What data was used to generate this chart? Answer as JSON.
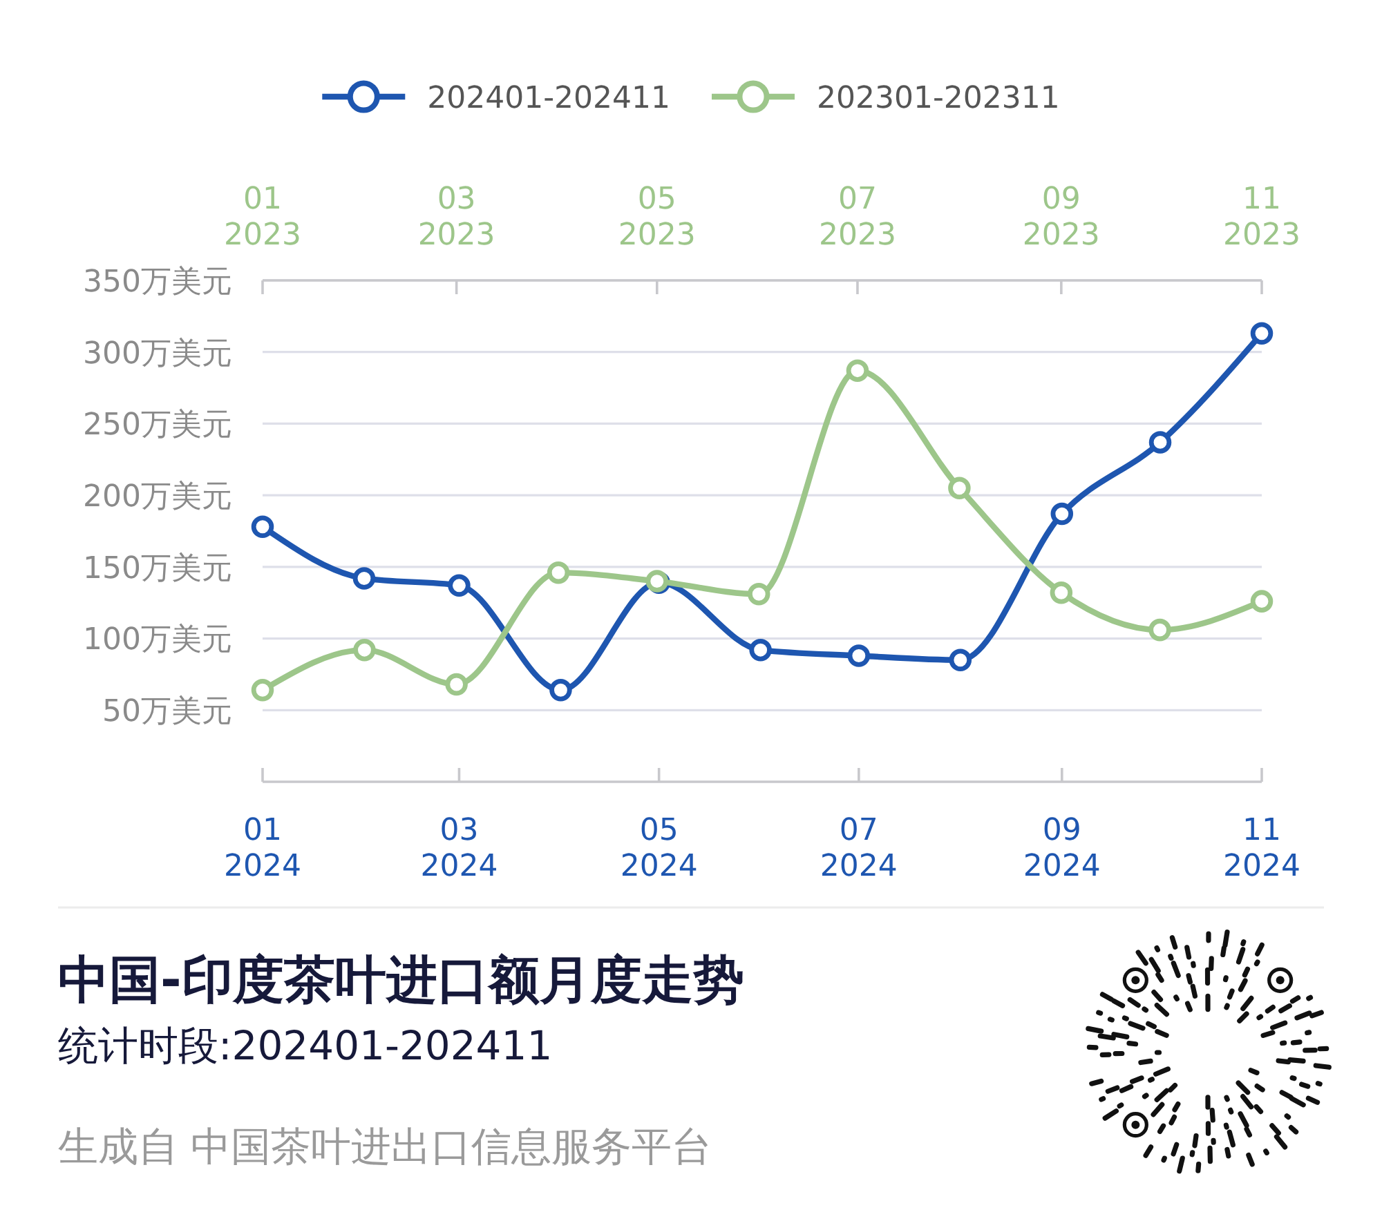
{
  "chart_data": {
    "type": "line",
    "title": "中国-印度茶叶进口额月度走势",
    "subtitle": "统计时段:202401-202411",
    "annotations": [
      "生成自 中国茶叶进出口信息服务平台"
    ],
    "x": [
      "2024-01",
      "2024-02",
      "2024-03",
      "2024-04",
      "2024-05",
      "2024-06",
      "2024-07",
      "2024-08",
      "2024-09",
      "2024-10",
      "2024-11"
    ],
    "xlim": [
      "2024-01",
      "2024-11"
    ],
    "xticks": [
      {
        "value": "2024-01",
        "label": "01\n2024"
      },
      {
        "value": "2024-03",
        "label": "03\n2024"
      },
      {
        "value": "2024-05",
        "label": "05\n2024"
      },
      {
        "value": "2024-07",
        "label": "07\n2024"
      },
      {
        "value": "2024-09",
        "label": "09\n2024"
      },
      {
        "value": "2024-11",
        "label": "11\n2024"
      }
    ],
    "x2lim": [
      "2023-01",
      "2023-11"
    ],
    "x2ticks": [
      {
        "value": "2023-01",
        "label": "01\n2023"
      },
      {
        "value": "2023-03",
        "label": "03\n2023"
      },
      {
        "value": "2023-05",
        "label": "05\n2023"
      },
      {
        "value": "2023-07",
        "label": "07\n2023"
      },
      {
        "value": "2023-09",
        "label": "09\n2023"
      },
      {
        "value": "2023-11",
        "label": "11\n2023"
      }
    ],
    "ylim": [
      0,
      350
    ],
    "yticks": [
      {
        "value": 50,
        "label": "50万美元"
      },
      {
        "value": 100,
        "label": "100万美元"
      },
      {
        "value": 150,
        "label": "150万美元"
      },
      {
        "value": 200,
        "label": "200万美元"
      },
      {
        "value": 250,
        "label": "250万美元"
      },
      {
        "value": 300,
        "label": "300万美元"
      },
      {
        "value": 350,
        "label": "350万美元"
      }
    ],
    "series": [
      {
        "name": "202401-202411",
        "color": "#1e56b0",
        "values": [
          178,
          142,
          137,
          64,
          139,
          92,
          88,
          85,
          187,
          237,
          313
        ]
      },
      {
        "name": "202301-202311",
        "color": "#9dc68a",
        "axis": "x2",
        "x": [
          "2023-01",
          "2023-02",
          "2023-03",
          "2023-04",
          "2023-05",
          "2023-06",
          "2023-07",
          "2023-08",
          "2023-09",
          "2023-10",
          "2023-11"
        ],
        "values": [
          64,
          92,
          68,
          146,
          140,
          131,
          287,
          205,
          132,
          106,
          126
        ]
      }
    ],
    "grid": "y",
    "legend": "top",
    "marker": "circle",
    "line_style": "solid"
  }
}
